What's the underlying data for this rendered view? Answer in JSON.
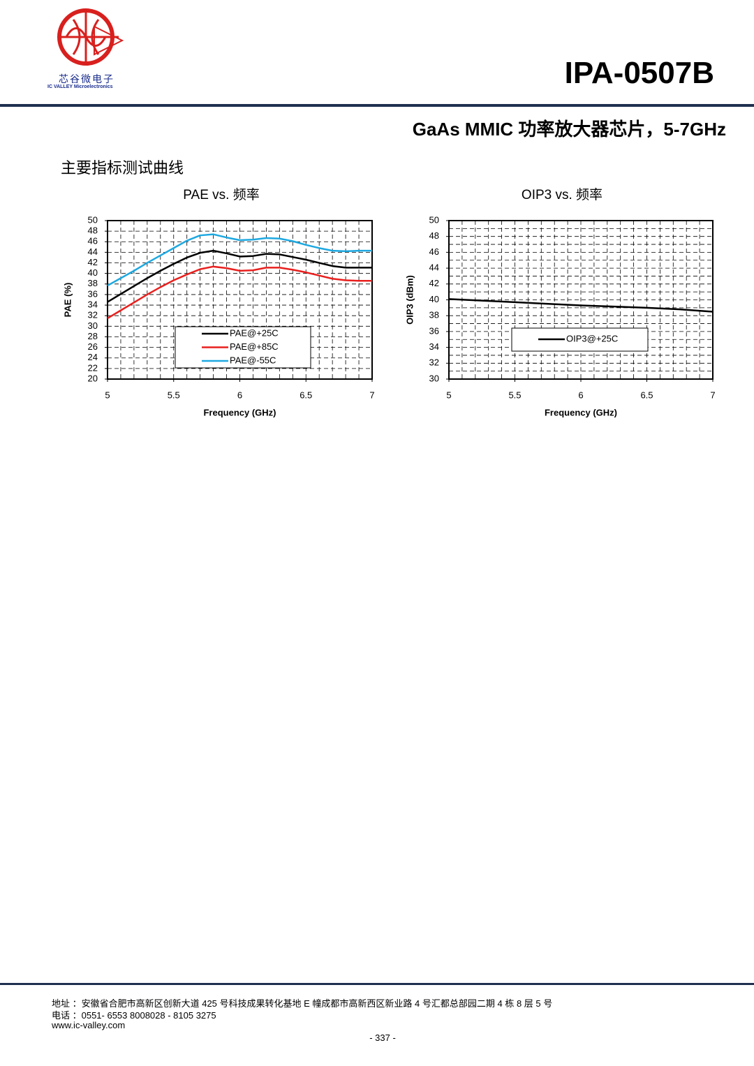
{
  "header": {
    "company_cn": "芯谷微电子",
    "company_en": "IC VALLEY Microelectronics",
    "part_number": "IPA-0507B",
    "subtitle": "GaAs MMIC 功率放大器芯片，5-7GHz"
  },
  "section_title": "主要指标测试曲线",
  "chart_data": [
    {
      "type": "line",
      "title": "PAE vs.  频率",
      "x_label": "Frequency (GHz)",
      "y_label": "PAE (%)",
      "x": [
        5,
        5.1,
        5.2,
        5.3,
        5.4,
        5.5,
        5.6,
        5.7,
        5.8,
        5.9,
        6,
        6.1,
        6.2,
        6.3,
        6.4,
        6.5,
        6.6,
        6.7,
        6.8,
        6.9,
        7
      ],
      "series": [
        {
          "name": "PAE@+25C",
          "color": "#000000",
          "values": [
            34.6,
            36.1,
            37.6,
            39.1,
            40.5,
            41.8,
            43.0,
            43.9,
            44.3,
            43.8,
            43.2,
            43.3,
            43.7,
            43.6,
            43.1,
            42.6,
            42.0,
            41.4,
            41.1,
            41.1,
            41.1
          ]
        },
        {
          "name": "PAE@+85C",
          "color": "#e8201e",
          "values": [
            31.5,
            33.0,
            34.5,
            36.0,
            37.4,
            38.7,
            39.8,
            40.8,
            41.3,
            41.0,
            40.5,
            40.6,
            41.1,
            41.1,
            40.7,
            40.2,
            39.6,
            39.0,
            38.7,
            38.6,
            38.6
          ]
        },
        {
          "name": "PAE@-55C",
          "color": "#1ea8e0",
          "values": [
            37.7,
            39.1,
            40.5,
            42.0,
            43.4,
            44.8,
            46.2,
            47.2,
            47.4,
            46.8,
            46.3,
            46.4,
            46.7,
            46.6,
            46.1,
            45.4,
            44.8,
            44.3,
            44.2,
            44.3,
            44.3
          ]
        }
      ],
      "xlim": [
        5,
        7
      ],
      "xticks": [
        5,
        5.5,
        6,
        6.5,
        7
      ],
      "ylim": [
        20,
        50
      ],
      "yticks": [
        20,
        22,
        24,
        26,
        28,
        30,
        32,
        34,
        36,
        38,
        40,
        42,
        44,
        46,
        48,
        50
      ],
      "grid": true
    },
    {
      "type": "line",
      "title": "OIP3 vs.  频率",
      "x_label": "Frequency (GHz)",
      "y_label": "OIP3 (dBm)",
      "x": [
        5,
        5.5,
        6,
        6.5,
        6.75,
        7
      ],
      "series": [
        {
          "name": "OIP3@+25C",
          "color": "#000000",
          "values": [
            40.1,
            39.7,
            39.3,
            39.0,
            38.8,
            38.5
          ]
        }
      ],
      "xlim": [
        5,
        7
      ],
      "xticks": [
        5,
        5.5,
        6,
        6.5,
        7
      ],
      "ylim": [
        30,
        50
      ],
      "yticks": [
        30,
        32,
        34,
        36,
        38,
        40,
        42,
        44,
        46,
        48,
        50
      ],
      "grid": true
    }
  ],
  "footer": {
    "address": "地址 ：安徽省合肥市高新区创新大道 425 号科技成果转化基地 E 幢成都市高新西区新业路 4 号汇都总部园二期 4 栋 8 层 5 号",
    "phone": "电话 ：0551- 6553 8008028 - 8105 3275",
    "website": "www.ic-valley.com",
    "page": "- 337 -"
  }
}
